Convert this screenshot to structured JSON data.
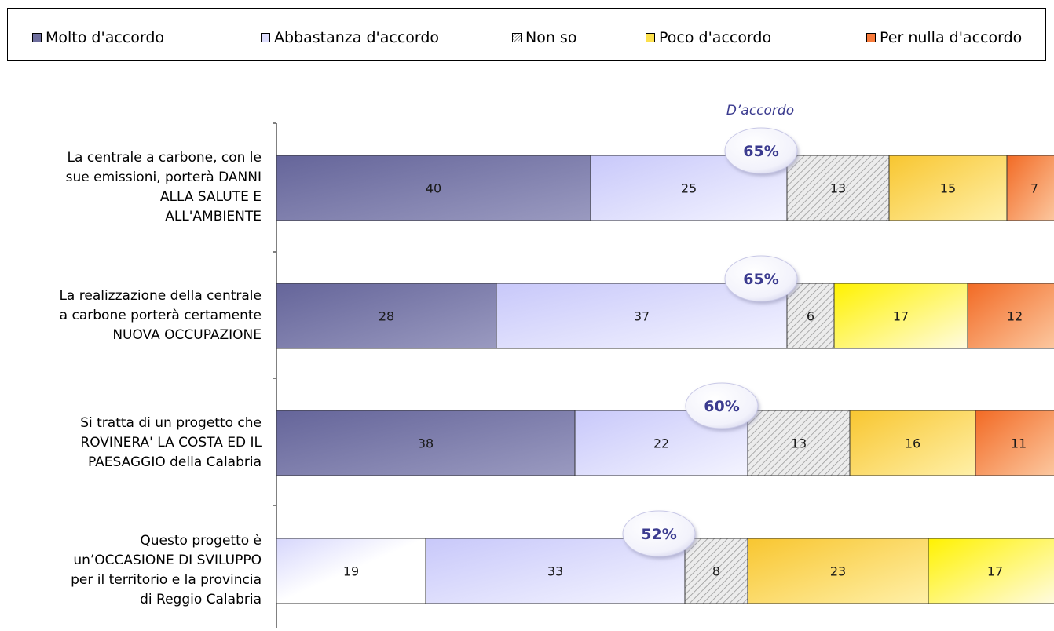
{
  "colors": {
    "molto": "#7f7faa",
    "abbastanza": "#e4e4fc",
    "nonso": "#d9d9d9",
    "poco": "#fccc44",
    "pernulla": "#f88a3c",
    "bubble_text": "#3b3b8f"
  },
  "legend": [
    {
      "label": "Molto d'accordo",
      "color": "#6e6e9e",
      "pattern": false
    },
    {
      "label": "Abbastanza d'accordo",
      "color": "#dcdcfc",
      "pattern": false
    },
    {
      "label": "Non so",
      "color": "#e6e6e6",
      "pattern": true
    },
    {
      "label": "Poco d'accordo",
      "color": "#fce04c",
      "pattern": false
    },
    {
      "label": "Per nulla d'accordo",
      "color": "#f87a3a",
      "pattern": false
    }
  ],
  "header_label": "D’accordo",
  "chart_data": {
    "type": "bar",
    "orientation": "horizontal",
    "stacked": true,
    "xlim": [
      0,
      100
    ],
    "categories": [
      "La centrale a carbone, con le sue emissioni, porterà DANNI ALLA SALUTE E ALL'AMBIENTE",
      "La realizzazione della centrale a carbone porterà certamente NUOVA OCCUPAZIONE",
      "Si tratta di un progetto che ROVINERA' LA COSTA ED IL PAESAGGIO della Calabria",
      "Questo progetto è un’OCCASIONE DI SVILUPPO per il territorio e la provincia di Reggio Calabria"
    ],
    "category_lines": [
      [
        "La centrale a carbone, con le",
        "sue emissioni, porterà DANNI",
        "ALLA SALUTE E",
        "ALL'AMBIENTE"
      ],
      [
        "La realizzazione della centrale",
        "a carbone porterà certamente",
        "NUOVA OCCUPAZIONE"
      ],
      [
        "Si tratta di un progetto che",
        "ROVINERA' LA COSTA ED IL",
        "PAESAGGIO della Calabria"
      ],
      [
        "Questo progetto è",
        "un’OCCASIONE DI SVILUPPO",
        "per il territorio e la provincia",
        "di Reggio Calabria"
      ]
    ],
    "series": [
      {
        "name": "Molto d'accordo",
        "values": [
          40,
          28,
          38,
          19
        ]
      },
      {
        "name": "Abbastanza d'accordo",
        "values": [
          25,
          37,
          22,
          33
        ]
      },
      {
        "name": "Non so",
        "values": [
          13,
          6,
          13,
          8
        ]
      },
      {
        "name": "Poco d'accordo",
        "values": [
          15,
          17,
          16,
          23
        ]
      },
      {
        "name": "Per nulla d'accordo",
        "values": [
          7,
          12,
          11,
          17
        ]
      }
    ],
    "row_segment_colors": [
      [
        "molto",
        "abbastanza",
        "nonso",
        "poco",
        "pernulla"
      ],
      [
        "molto",
        "abbastanza",
        "nonso",
        "poco_light",
        "pernulla"
      ],
      [
        "molto",
        "abbastanza",
        "nonso",
        "poco",
        "pernulla"
      ],
      [
        "abbastanza",
        "abbastanza",
        "nonso",
        "poco",
        "poco_light"
      ]
    ],
    "agree_totals": [
      "65%",
      "65%",
      "60%",
      "52%"
    ]
  }
}
